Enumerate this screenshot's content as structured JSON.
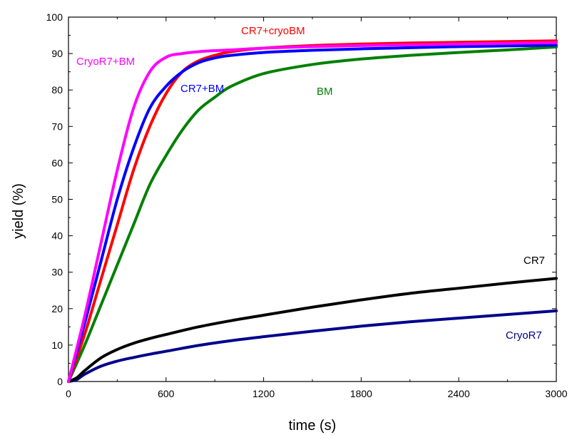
{
  "chart_data": {
    "type": "line",
    "xlabel": "time (s)",
    "ylabel": "yield (%)",
    "xlim": [
      0,
      3000
    ],
    "ylim": [
      0,
      100
    ],
    "xticks": [
      0,
      600,
      1200,
      1800,
      2400,
      3000
    ],
    "yticks": [
      0,
      10,
      20,
      30,
      40,
      50,
      60,
      70,
      80,
      90,
      100
    ],
    "grid": false,
    "legend": "none (series labeled inline)",
    "series": [
      {
        "name": "CR7+cryoBM",
        "color": "#ff0000",
        "x": [
          0,
          100,
          200,
          300,
          400,
          500,
          600,
          700,
          800,
          900,
          1000,
          1200,
          1500,
          1800,
          2100,
          2400,
          2700,
          3000
        ],
        "y": [
          0,
          13,
          28,
          43,
          58,
          70,
          79,
          85,
          88,
          89.5,
          90.5,
          91.5,
          92.2,
          92.6,
          92.9,
          93.1,
          93.3,
          93.5
        ]
      },
      {
        "name": "CryoR7+BM",
        "color": "#ff00ff",
        "x": [
          0,
          100,
          200,
          300,
          400,
          500,
          600,
          700,
          800,
          900,
          1000,
          1200,
          1500,
          1800,
          2100,
          2400,
          2700,
          3000
        ],
        "y": [
          0,
          18,
          38,
          58,
          75,
          85,
          89,
          90,
          90.5,
          90.8,
          91,
          91.5,
          91.9,
          92.2,
          92.4,
          92.6,
          92.8,
          93
        ]
      },
      {
        "name": "CR7+BM",
        "color": "#0000ff",
        "x": [
          0,
          100,
          200,
          300,
          400,
          500,
          600,
          700,
          800,
          900,
          1000,
          1200,
          1500,
          1800,
          2100,
          2400,
          2700,
          3000
        ],
        "y": [
          0,
          16,
          33,
          50,
          64,
          75,
          81,
          85,
          87.5,
          88.8,
          89.5,
          90.3,
          90.9,
          91.3,
          91.6,
          91.9,
          92.1,
          92.3
        ]
      },
      {
        "name": "BM",
        "color": "#008000",
        "x": [
          0,
          100,
          200,
          300,
          400,
          500,
          600,
          700,
          800,
          900,
          1000,
          1200,
          1500,
          1800,
          2100,
          2400,
          2700,
          3000
        ],
        "y": [
          0,
          10,
          21,
          32,
          43,
          54,
          62,
          69,
          74.5,
          78,
          81,
          84.5,
          87,
          88.5,
          89.5,
          90.3,
          91,
          91.8
        ]
      },
      {
        "name": "CR7",
        "color": "#000000",
        "x": [
          0,
          50,
          100,
          200,
          300,
          400,
          500,
          600,
          800,
          1000,
          1200,
          1500,
          1800,
          2100,
          2400,
          2700,
          3000
        ],
        "y": [
          0,
          1,
          3,
          6.5,
          8.8,
          10.5,
          11.8,
          12.9,
          15,
          16.7,
          18.2,
          20.4,
          22.4,
          24.2,
          25.6,
          27,
          28.3
        ]
      },
      {
        "name": "CryoR7",
        "color": "#00008b",
        "x": [
          0,
          50,
          100,
          200,
          300,
          400,
          500,
          600,
          800,
          1000,
          1200,
          1500,
          1800,
          2100,
          2400,
          2700,
          3000
        ],
        "y": [
          0,
          0.5,
          2,
          4.2,
          5.6,
          6.6,
          7.5,
          8.3,
          9.9,
          11.2,
          12.3,
          13.8,
          15.2,
          16.4,
          17.4,
          18.4,
          19.4
        ]
      }
    ]
  }
}
